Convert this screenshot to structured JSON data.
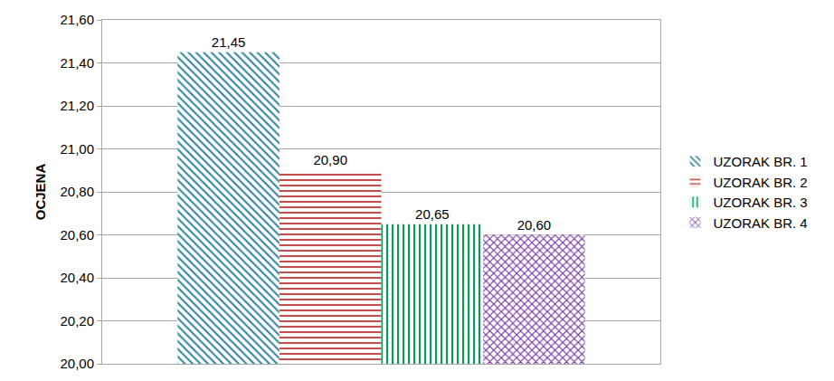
{
  "chart_data": {
    "type": "bar",
    "y_label": "OCJENA",
    "categories": [
      null
    ],
    "series": [
      {
        "name": "UZORAK BR. 1",
        "color": "#31859c",
        "values": [
          21.45
        ],
        "value_labels": [
          "21,45"
        ]
      },
      {
        "name": "UZORAK BR. 2",
        "color": "#c0504d",
        "values": [
          20.9
        ],
        "value_labels": [
          "20,90"
        ]
      },
      {
        "name": "UZORAK BR. 3",
        "color": "#00a050",
        "values": [
          20.65
        ],
        "value_labels": [
          "20,65"
        ]
      },
      {
        "name": "UZORAK BR. 4",
        "color": "#7030a0",
        "values": [
          20.6
        ],
        "value_labels": [
          "20,60"
        ]
      }
    ],
    "ylim": [
      20.0,
      21.6
    ],
    "yticks": [
      {
        "value": 20.0,
        "label": "20,00"
      },
      {
        "value": 20.2,
        "label": "20,20"
      },
      {
        "value": 20.4,
        "label": "20,40"
      },
      {
        "value": 20.6,
        "label": "20,60"
      },
      {
        "value": 20.8,
        "label": "20,80"
      },
      {
        "value": 21.0,
        "label": "21,00"
      },
      {
        "value": 21.2,
        "label": "21,20"
      },
      {
        "value": 21.4,
        "label": "21,40"
      },
      {
        "value": 21.6,
        "label": "21,60"
      }
    ],
    "grid": true,
    "legend": "right",
    "data_labels": true
  }
}
